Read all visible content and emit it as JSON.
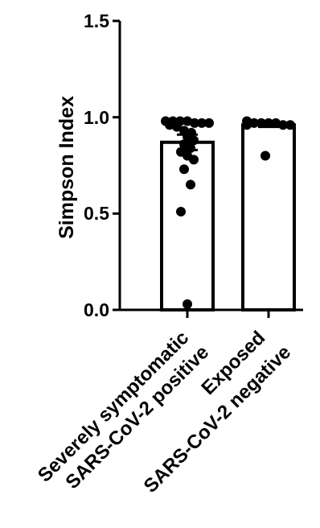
{
  "chart_data": {
    "type": "bar",
    "ylabel": "Simpson Index",
    "ylim": [
      0,
      1.5
    ],
    "yticks": [
      "0.0",
      "0.5",
      "1.0",
      "1.5"
    ],
    "grid": false,
    "categories": [
      {
        "line1": "Severely symptomatic",
        "line2": "SARS-CoV-2 positive"
      },
      {
        "line1": "Exposed",
        "line2": "SARS-CoV-2 negative"
      }
    ],
    "values": [
      0.87,
      0.96
    ],
    "sem": [
      0.04,
      0.01
    ],
    "points": [
      [
        0.98,
        0.97,
        0.98,
        0.97,
        0.98,
        0.98,
        0.97,
        0.96,
        0.95,
        0.93,
        0.92,
        0.9,
        0.88,
        0.86,
        0.84,
        0.82,
        0.8,
        0.78,
        0.73,
        0.65,
        0.51,
        0.03
      ],
      [
        0.98,
        0.97,
        0.97,
        0.96,
        0.96,
        0.97,
        0.97,
        0.96,
        0.8
      ]
    ]
  }
}
